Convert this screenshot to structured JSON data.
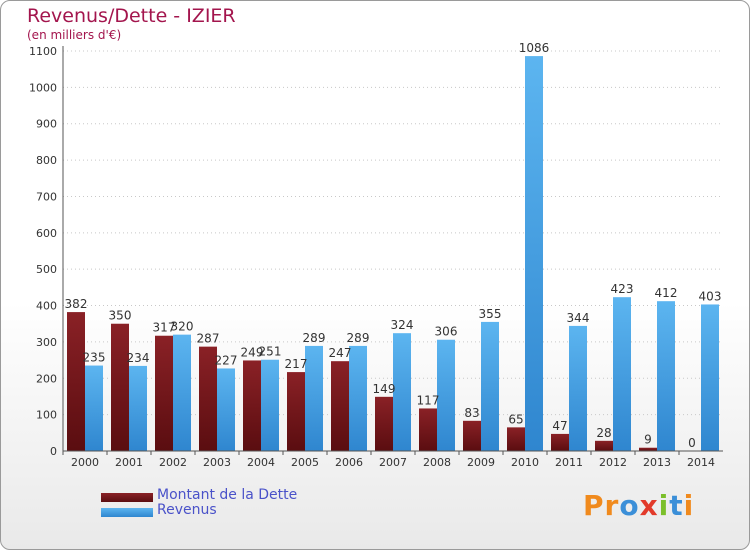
{
  "title": "Revenus/Dette - IZIER",
  "subtitle": "(en milliers d'€)",
  "logo": {
    "text": "Proxiti",
    "letters": [
      "P",
      "r",
      "o",
      "x",
      "i",
      "t",
      "i"
    ],
    "letter_colors": [
      "#f08a1d",
      "#f08a1d",
      "#3b8fd8",
      "#e23a2a",
      "#7bbf2a",
      "#3b8fd8",
      "#f08a1d"
    ]
  },
  "chart_data": {
    "type": "bar",
    "title": "Revenus/Dette - IZIER",
    "ylabel": "(en milliers d'€)",
    "categories": [
      "2000",
      "2001",
      "2002",
      "2003",
      "2004",
      "2005",
      "2006",
      "2007",
      "2008",
      "2009",
      "2010",
      "2011",
      "2012",
      "2013",
      "2014"
    ],
    "series": [
      {
        "name": "Montant de la Dette",
        "color": "#7b1a1c",
        "values": [
          382,
          350,
          317,
          287,
          249,
          217,
          247,
          149,
          117,
          83,
          65,
          47,
          28,
          9,
          0
        ]
      },
      {
        "name": "Revenus",
        "color": "#4ba6e8",
        "values": [
          235,
          234,
          320,
          227,
          251,
          289,
          289,
          324,
          306,
          355,
          1086,
          344,
          423,
          412,
          403
        ]
      }
    ],
    "ylim": [
      0,
      1100
    ],
    "yticks": [
      0,
      100,
      200,
      300,
      400,
      500,
      600,
      700,
      800,
      900,
      1000,
      1100
    ],
    "grid": true,
    "legend": "bottom-left"
  }
}
